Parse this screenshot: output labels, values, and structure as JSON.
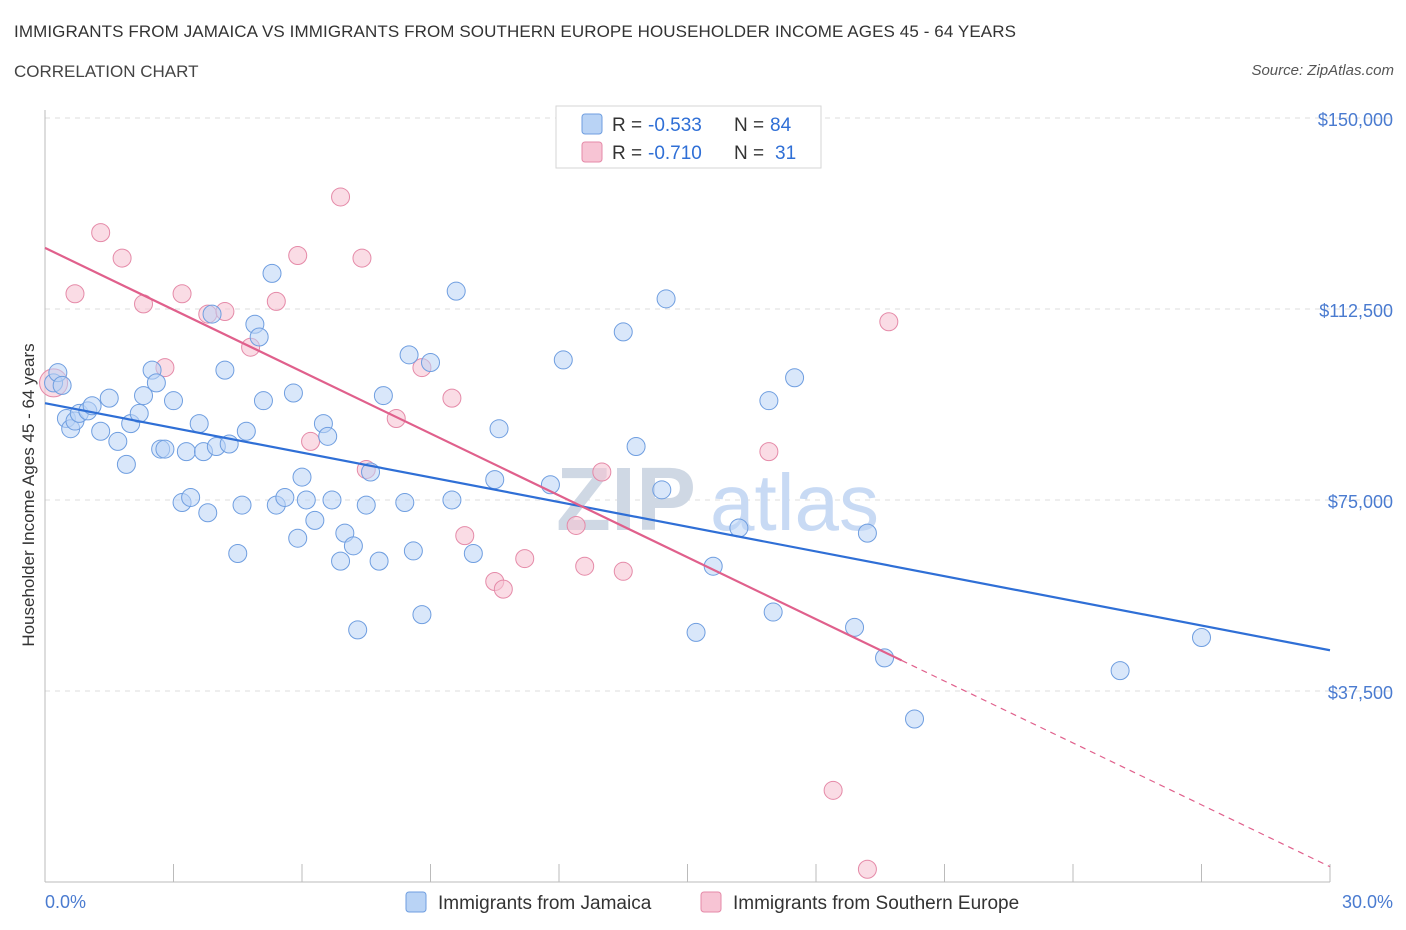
{
  "header": {
    "title": "IMMIGRANTS FROM JAMAICA VS IMMIGRANTS FROM SOUTHERN EUROPE HOUSEHOLDER INCOME AGES 45 - 64 YEARS",
    "subtitle": "CORRELATION CHART",
    "source": "Source: ZipAtlas.com"
  },
  "watermark": {
    "zip": "ZIP",
    "atlas": "atlas"
  },
  "colors": {
    "blue_fill": "#b9d3f5",
    "blue_stroke": "#6f9ee0",
    "blue_line": "#2f6fd6",
    "pink_fill": "#f7c4d4",
    "pink_stroke": "#e58aa8",
    "pink_line": "#e0608c"
  },
  "legend": {
    "series": [
      {
        "r_label": "R =",
        "r_value": "-0.533",
        "n_label": "N =",
        "n_value": "84"
      },
      {
        "r_label": "R =",
        "r_value": "-0.710",
        "n_label": "N =",
        "n_value": "31"
      }
    ]
  },
  "bottom_legend": [
    "Immigrants from Jamaica",
    "Immigrants from Southern Europe"
  ],
  "chart_data": {
    "type": "scatter",
    "ylabel": "Householder Income Ages 45 - 64 years",
    "xlim": [
      0,
      30
    ],
    "ylim": [
      0,
      150000
    ],
    "x_tick_labels": [
      "0.0%",
      "30.0%"
    ],
    "y_ticks": [
      37500,
      75000,
      112500,
      150000
    ],
    "y_tick_labels": [
      "$37,500",
      "$75,000",
      "$112,500",
      "$150,000"
    ],
    "grid": true,
    "series": [
      {
        "name": "Immigrants from Jamaica",
        "points": [
          [
            0.2,
            98000
          ],
          [
            0.3,
            100000
          ],
          [
            0.4,
            97500
          ],
          [
            0.5,
            91000
          ],
          [
            0.6,
            89000
          ],
          [
            0.7,
            90500
          ],
          [
            0.8,
            92000
          ],
          [
            1.0,
            92500
          ],
          [
            1.1,
            93500
          ],
          [
            1.3,
            88500
          ],
          [
            1.5,
            95000
          ],
          [
            1.7,
            86500
          ],
          [
            1.9,
            82000
          ],
          [
            2.0,
            90000
          ],
          [
            2.2,
            92000
          ],
          [
            2.3,
            95500
          ],
          [
            2.5,
            100500
          ],
          [
            2.6,
            98000
          ],
          [
            2.7,
            85000
          ],
          [
            2.8,
            85000
          ],
          [
            3.0,
            94500
          ],
          [
            3.2,
            74500
          ],
          [
            3.3,
            84500
          ],
          [
            3.4,
            75500
          ],
          [
            3.6,
            90000
          ],
          [
            3.7,
            84500
          ],
          [
            3.8,
            72500
          ],
          [
            3.9,
            111500
          ],
          [
            4.0,
            85500
          ],
          [
            4.2,
            100500
          ],
          [
            4.3,
            86000
          ],
          [
            4.5,
            64500
          ],
          [
            4.6,
            74000
          ],
          [
            4.7,
            88500
          ],
          [
            4.9,
            109500
          ],
          [
            5.0,
            107000
          ],
          [
            5.1,
            94500
          ],
          [
            5.3,
            119500
          ],
          [
            5.4,
            74000
          ],
          [
            5.6,
            75500
          ],
          [
            5.8,
            96000
          ],
          [
            5.9,
            67500
          ],
          [
            6.0,
            79500
          ],
          [
            6.1,
            75000
          ],
          [
            6.3,
            71000
          ],
          [
            6.5,
            90000
          ],
          [
            6.6,
            87500
          ],
          [
            6.7,
            75000
          ],
          [
            6.9,
            63000
          ],
          [
            7.0,
            68500
          ],
          [
            7.2,
            66000
          ],
          [
            7.3,
            49500
          ],
          [
            7.5,
            74000
          ],
          [
            7.6,
            80500
          ],
          [
            7.8,
            63000
          ],
          [
            7.9,
            95500
          ],
          [
            8.4,
            74500
          ],
          [
            8.5,
            103500
          ],
          [
            8.6,
            65000
          ],
          [
            8.8,
            52500
          ],
          [
            9.0,
            102000
          ],
          [
            9.5,
            75000
          ],
          [
            9.6,
            116000
          ],
          [
            10.0,
            64500
          ],
          [
            10.5,
            79000
          ],
          [
            10.6,
            89000
          ],
          [
            11.8,
            78000
          ],
          [
            12.1,
            102500
          ],
          [
            13.5,
            108000
          ],
          [
            13.8,
            85500
          ],
          [
            14.4,
            77000
          ],
          [
            14.5,
            114500
          ],
          [
            15.6,
            62000
          ],
          [
            15.2,
            49000
          ],
          [
            16.2,
            69500
          ],
          [
            16.9,
            94500
          ],
          [
            17.0,
            53000
          ],
          [
            18.9,
            50000
          ],
          [
            19.2,
            68500
          ],
          [
            19.6,
            44000
          ],
          [
            20.3,
            32000
          ],
          [
            25.1,
            41500
          ],
          [
            27.0,
            48000
          ],
          [
            17.5,
            99000
          ]
        ],
        "trend": [
          [
            0,
            94000
          ],
          [
            30,
            45500
          ]
        ]
      },
      {
        "name": "Immigrants from Southern Europe",
        "points": [
          [
            0.2,
            98000
          ],
          [
            0.7,
            115500
          ],
          [
            1.3,
            127500
          ],
          [
            1.8,
            122500
          ],
          [
            2.3,
            113500
          ],
          [
            2.8,
            101000
          ],
          [
            3.2,
            115500
          ],
          [
            3.8,
            111500
          ],
          [
            4.2,
            112000
          ],
          [
            4.8,
            105000
          ],
          [
            5.4,
            114000
          ],
          [
            5.9,
            123000
          ],
          [
            6.2,
            86500
          ],
          [
            6.9,
            134500
          ],
          [
            7.4,
            122500
          ],
          [
            7.5,
            81000
          ],
          [
            8.2,
            91000
          ],
          [
            8.8,
            101000
          ],
          [
            9.5,
            95000
          ],
          [
            9.8,
            68000
          ],
          [
            10.5,
            59000
          ],
          [
            10.7,
            57500
          ],
          [
            11.2,
            63500
          ],
          [
            12.4,
            70000
          ],
          [
            12.6,
            62000
          ],
          [
            13.0,
            80500
          ],
          [
            13.5,
            61000
          ],
          [
            16.9,
            84500
          ],
          [
            18.4,
            18000
          ],
          [
            19.7,
            110000
          ],
          [
            19.2,
            2500
          ]
        ],
        "trend": [
          [
            0,
            124500
          ],
          [
            20,
            43500
          ]
        ],
        "trend_extension": [
          [
            20,
            43500
          ],
          [
            30,
            3000
          ]
        ]
      }
    ]
  }
}
